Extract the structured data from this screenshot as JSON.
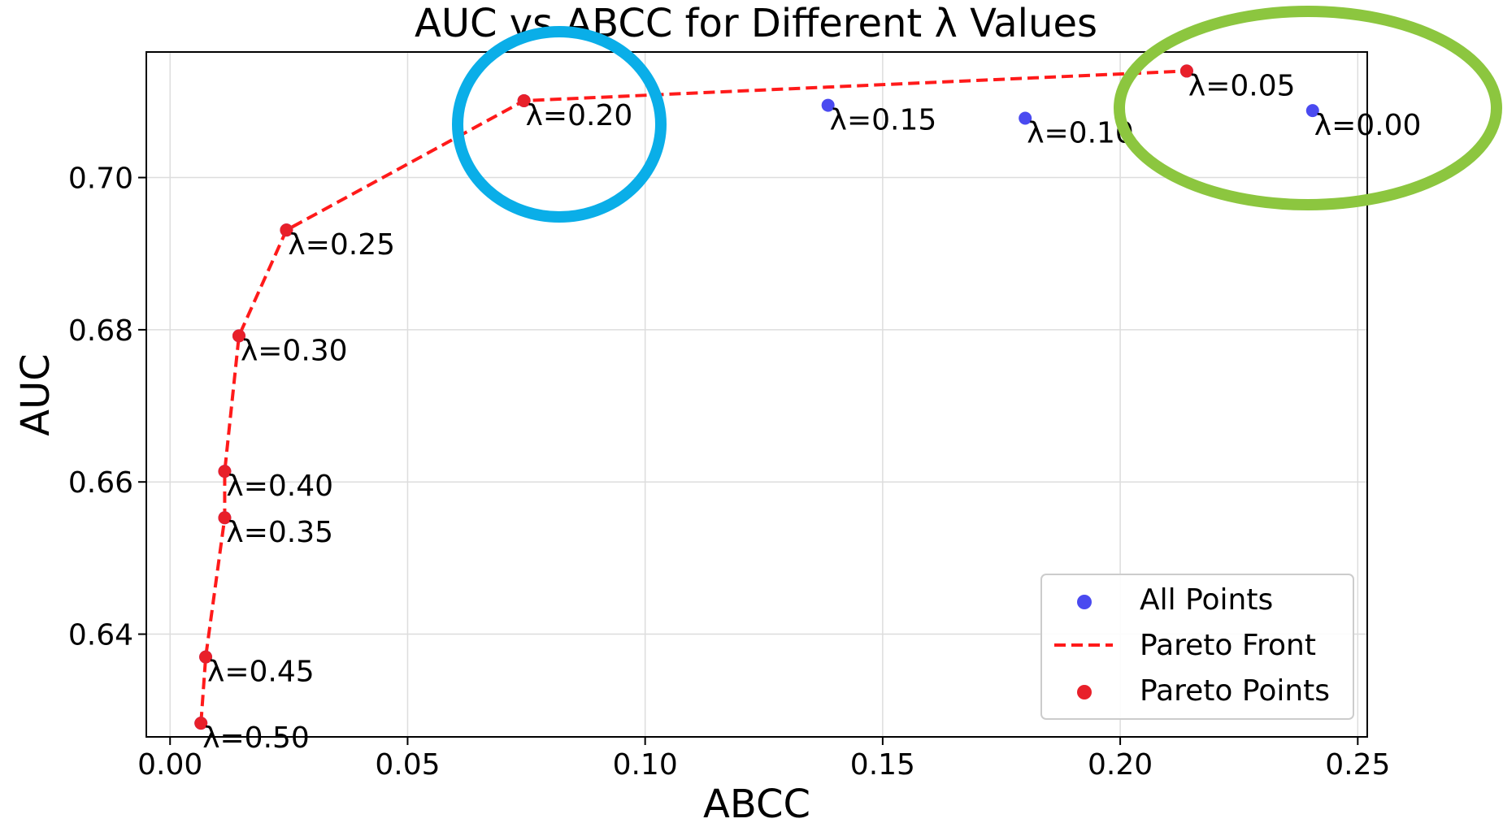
{
  "chart_data": {
    "type": "scatter",
    "title": "AUC vs ABCC for Different λ Values",
    "xlabel": "ABCC",
    "ylabel": "AUC",
    "xlim": [
      -0.005,
      0.252
    ],
    "ylim": [
      0.6265,
      0.7165
    ],
    "xticks": [
      0.0,
      0.05,
      0.1,
      0.15,
      0.2,
      0.25
    ],
    "xtick_labels": [
      "0.00",
      "0.05",
      "0.10",
      "0.15",
      "0.20",
      "0.25"
    ],
    "yticks": [
      0.64,
      0.66,
      0.68,
      0.7
    ],
    "ytick_labels": [
      "0.64",
      "0.66",
      "0.68",
      "0.70"
    ],
    "grid": true,
    "legend_position": "bottom-right",
    "colors": {
      "all_points": "#4a4af0",
      "pareto": "#ff1a1a",
      "pareto_points": "#e8202a",
      "highlight_blue": "#0aaee8",
      "highlight_green": "#8cc63f"
    },
    "series": [
      {
        "name": "All Points",
        "points": [
          {
            "x": 0.2405,
            "y": 0.7088,
            "label": "λ=0.00"
          },
          {
            "x": 0.214,
            "y": 0.714,
            "label": "λ=0.05"
          },
          {
            "x": 0.18,
            "y": 0.7078,
            "label": "λ=0.10"
          },
          {
            "x": 0.1385,
            "y": 0.7095,
            "label": "λ=0.15"
          },
          {
            "x": 0.0745,
            "y": 0.7101,
            "label": "λ=0.20"
          },
          {
            "x": 0.0245,
            "y": 0.6931,
            "label": "λ=0.25"
          },
          {
            "x": 0.0145,
            "y": 0.6792,
            "label": "λ=0.30"
          },
          {
            "x": 0.0115,
            "y": 0.6553,
            "label": "λ=0.35"
          },
          {
            "x": 0.0115,
            "y": 0.6614,
            "label": "λ=0.40"
          },
          {
            "x": 0.0075,
            "y": 0.637,
            "label": "λ=0.45"
          },
          {
            "x": 0.0065,
            "y": 0.6283,
            "label": "λ=0.50"
          }
        ]
      },
      {
        "name": "Pareto Front",
        "style": "dashed-line",
        "points": [
          {
            "x": 0.0065,
            "y": 0.6283
          },
          {
            "x": 0.0075,
            "y": 0.637
          },
          {
            "x": 0.0115,
            "y": 0.6553
          },
          {
            "x": 0.0115,
            "y": 0.6614
          },
          {
            "x": 0.0145,
            "y": 0.6792
          },
          {
            "x": 0.0245,
            "y": 0.6931
          },
          {
            "x": 0.0745,
            "y": 0.7101
          },
          {
            "x": 0.214,
            "y": 0.714
          }
        ]
      },
      {
        "name": "Pareto Points",
        "points": [
          {
            "x": 0.0065,
            "y": 0.6283
          },
          {
            "x": 0.0075,
            "y": 0.637
          },
          {
            "x": 0.0115,
            "y": 0.6553
          },
          {
            "x": 0.0115,
            "y": 0.6614
          },
          {
            "x": 0.0145,
            "y": 0.6792
          },
          {
            "x": 0.0245,
            "y": 0.6931
          },
          {
            "x": 0.0745,
            "y": 0.7101
          },
          {
            "x": 0.214,
            "y": 0.714
          }
        ]
      }
    ],
    "highlights": [
      {
        "shape": "circle",
        "color": "blue",
        "around": "λ=0.20"
      },
      {
        "shape": "ellipse",
        "color": "green",
        "around": [
          "λ=0.05",
          "λ=0.00"
        ]
      }
    ]
  }
}
